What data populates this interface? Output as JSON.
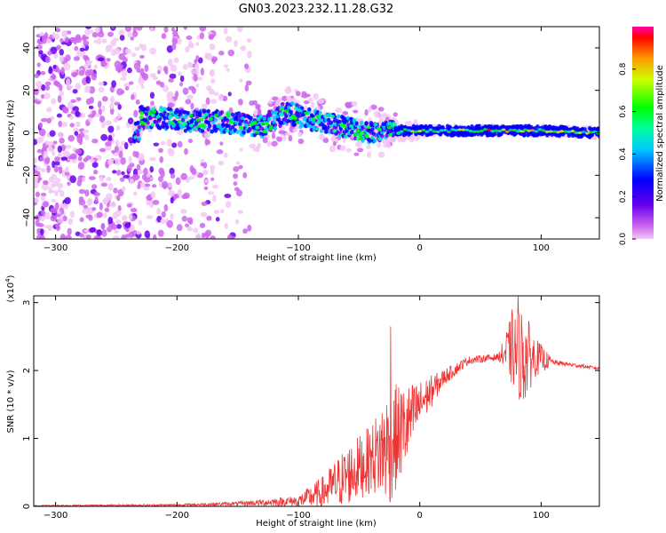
{
  "title": "GN03.2023.232.11.28.G32",
  "chart_data": [
    {
      "type": "heatmap",
      "xlabel": "Height of straight line (km)",
      "ylabel": "Frequency (Hz)",
      "xlim": [
        -318,
        148
      ],
      "ylim": [
        -50,
        50
      ],
      "xticks": [
        -300,
        -200,
        -100,
        0,
        100
      ],
      "yticks": [
        -40,
        -20,
        0,
        20,
        40
      ],
      "colorbar": {
        "label": "Normalized spectral amplitude",
        "range": [
          0,
          1
        ],
        "ticks": [
          0.0,
          0.2,
          0.4,
          0.6,
          0.8
        ],
        "tick_labels": [
          "0.0",
          "0.2",
          "0.4",
          "0.6",
          "0.8"
        ]
      },
      "description_points": {
        "ridge_center_hz": [
          {
            "x": -230,
            "y": 8
          },
          {
            "x": -200,
            "y": 6
          },
          {
            "x": -160,
            "y": 5
          },
          {
            "x": -130,
            "y": 3
          },
          {
            "x": -110,
            "y": 10
          },
          {
            "x": -90,
            "y": 6
          },
          {
            "x": -60,
            "y": 3
          },
          {
            "x": -40,
            "y": 0
          },
          {
            "x": -20,
            "y": 1
          },
          {
            "x": 0,
            "y": 1
          },
          {
            "x": 50,
            "y": 1
          },
          {
            "x": 100,
            "y": 1
          },
          {
            "x": 148,
            "y": 0
          }
        ],
        "noise_region_x": [
          -318,
          -140
        ]
      }
    },
    {
      "type": "line",
      "xlabel": "Height of straight line (km)",
      "ylabel": "SNR (10 * v/v)",
      "y_multiplier": "(x10",
      "y_multiplier_exp": "4",
      "y_multiplier_close": ")",
      "xlim": [
        -318,
        148
      ],
      "ylim": [
        0,
        3.1
      ],
      "xticks": [
        -300,
        -200,
        -100,
        0,
        100
      ],
      "yticks": [
        0,
        1,
        2,
        3
      ],
      "color": "#ee3333",
      "envelope": [
        {
          "x": -318,
          "mean": 0.01,
          "noise": 0.01
        },
        {
          "x": -200,
          "mean": 0.02,
          "noise": 0.015
        },
        {
          "x": -150,
          "mean": 0.04,
          "noise": 0.03
        },
        {
          "x": -100,
          "mean": 0.08,
          "noise": 0.08
        },
        {
          "x": -80,
          "mean": 0.2,
          "noise": 0.25
        },
        {
          "x": -60,
          "mean": 0.45,
          "noise": 0.45
        },
        {
          "x": -40,
          "mean": 0.7,
          "noise": 0.5
        },
        {
          "x": -25,
          "mean": 0.9,
          "noise": 0.9
        },
        {
          "x": -10,
          "mean": 1.2,
          "noise": 0.6
        },
        {
          "x": 0,
          "mean": 1.5,
          "noise": 0.35
        },
        {
          "x": 20,
          "mean": 1.9,
          "noise": 0.12
        },
        {
          "x": 40,
          "mean": 2.15,
          "noise": 0.06
        },
        {
          "x": 65,
          "mean": 2.2,
          "noise": 0.05
        },
        {
          "x": 75,
          "mean": 2.3,
          "noise": 0.5
        },
        {
          "x": 85,
          "mean": 2.2,
          "noise": 0.75
        },
        {
          "x": 95,
          "mean": 2.2,
          "noise": 0.3
        },
        {
          "x": 110,
          "mean": 2.12,
          "noise": 0.04
        },
        {
          "x": 148,
          "mean": 2.03,
          "noise": 0.02
        }
      ],
      "peaks": [
        {
          "x": -24,
          "y": 2.65
        },
        {
          "x": 81,
          "y": 3.1
        },
        {
          "x": 76,
          "y": 2.9
        }
      ]
    }
  ]
}
